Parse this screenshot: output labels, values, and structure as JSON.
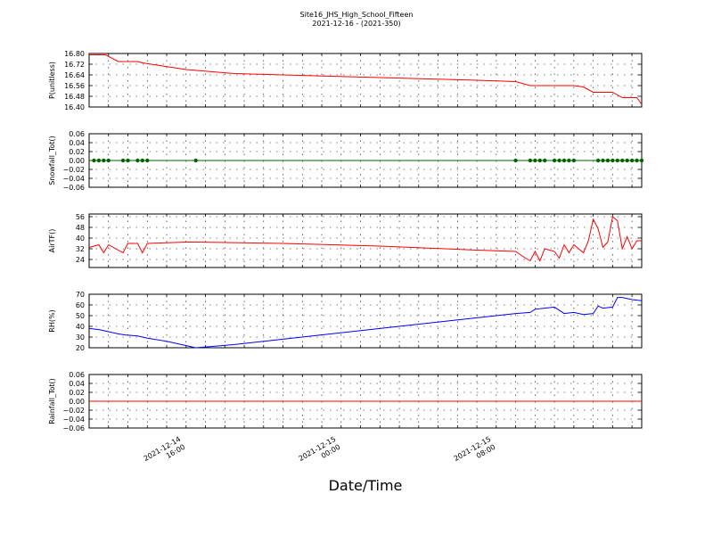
{
  "figure": {
    "title_line1": "Site16_JHS_High_School_Fifteen",
    "title_line2": "2021-12-16 - (2021-350)",
    "xlabel": "Date/Time",
    "x_tick_labels": [
      {
        "line1": "2021-12-14",
        "line2": "16:00"
      },
      {
        "line1": "2021-12-15",
        "line2": "00:00"
      },
      {
        "line1": "2021-12-15",
        "line2": "08:00"
      }
    ]
  },
  "chart_data": [
    {
      "type": "line",
      "ylabel": "P(unitless)",
      "ylim": [
        16.4,
        16.8
      ],
      "yticks": [
        "16.40",
        "16.48",
        "16.56",
        "16.64",
        "16.72",
        "16.80"
      ],
      "color": "#ff0000",
      "grid": true,
      "series": [
        {
          "x": [
            0,
            1,
            1.7,
            3,
            3.7,
            5,
            5.5,
            10,
            15,
            20,
            25,
            30,
            35,
            40,
            44,
            45.5,
            48,
            50,
            51,
            52,
            53,
            54,
            55,
            56,
            56.5,
            57
          ],
          "y": [
            16.79,
            16.79,
            16.79,
            16.74,
            16.74,
            16.74,
            16.73,
            16.68,
            16.65,
            16.64,
            16.63,
            16.62,
            16.61,
            16.6,
            16.59,
            16.56,
            16.56,
            16.56,
            16.55,
            16.51,
            16.51,
            16.51,
            16.47,
            16.47,
            16.47,
            16.42
          ]
        }
      ],
      "markers": false
    },
    {
      "type": "scatter",
      "ylabel": "Snowfall_Tot()",
      "ylim": [
        -0.06,
        0.06
      ],
      "yticks": [
        "−0.06",
        "−0.04",
        "−0.02",
        "0.00",
        "0.02",
        "0.04",
        "0.06"
      ],
      "color": "#006400",
      "grid": true,
      "series": [
        {
          "x": [
            0.5,
            1.0,
            1.5,
            2.0,
            3.5,
            4.0,
            5.0,
            5.5,
            6.0,
            11.0,
            44.0,
            45.5,
            46.0,
            46.5,
            47.0,
            48.0,
            48.5,
            49.0,
            49.5,
            50.0,
            52.5,
            53.0,
            53.5,
            54.0,
            54.5,
            55.0,
            55.5,
            56.0,
            56.5,
            57.0
          ],
          "y": [
            0,
            0,
            0,
            0,
            0,
            0,
            0,
            0,
            0,
            0,
            0,
            0,
            0,
            0,
            0,
            0,
            0,
            0,
            0,
            0,
            0,
            0,
            0,
            0,
            0,
            0,
            0,
            0,
            0,
            0
          ]
        }
      ],
      "markers": true
    },
    {
      "type": "line",
      "ylabel": "AirTF()",
      "ylim": [
        18,
        58
      ],
      "yticks": [
        "24",
        "32",
        "40",
        "48",
        "56"
      ],
      "color": "#ff0000",
      "grid": true,
      "series": [
        {
          "x": [
            0,
            1,
            1.5,
            2,
            3,
            3.5,
            4,
            5,
            5.5,
            6,
            10,
            11,
            20,
            30,
            40,
            44,
            45,
            45.5,
            46,
            46.5,
            47,
            48,
            48.5,
            49,
            49.5,
            50,
            51,
            51.5,
            52,
            52.5,
            53,
            53.5,
            54,
            54.5,
            55,
            55.5,
            56,
            56.5,
            57
          ],
          "y": [
            33,
            35,
            29,
            35,
            31,
            29,
            36,
            36,
            29,
            36,
            37,
            37,
            36,
            34,
            31,
            30,
            25,
            23,
            30,
            23,
            32,
            30,
            25,
            35,
            29,
            35,
            29,
            38,
            54,
            47,
            33,
            37,
            56,
            53,
            32,
            41,
            32,
            38,
            38
          ]
        }
      ],
      "markers": false
    },
    {
      "type": "line",
      "ylabel": "RH(%)",
      "ylim": [
        20,
        70
      ],
      "yticks": [
        "20",
        "30",
        "40",
        "50",
        "60",
        "70"
      ],
      "color": "#0000ff",
      "grid": true,
      "series": [
        {
          "x": [
            0,
            1,
            2,
            3,
            3.7,
            5,
            6,
            8,
            11,
            15,
            20,
            25,
            30,
            35,
            40,
            44,
            45.5,
            46,
            47,
            48,
            49,
            50,
            51,
            52,
            52.5,
            53,
            54,
            54.5,
            55,
            56,
            57
          ],
          "y": [
            38,
            37,
            35,
            33,
            32,
            31,
            29,
            26,
            20,
            23,
            28,
            33,
            38,
            43,
            48,
            52,
            53,
            56,
            57,
            58,
            52,
            53,
            51,
            52,
            59,
            57,
            58,
            67,
            67,
            65,
            64
          ]
        }
      ],
      "markers": false
    },
    {
      "type": "line",
      "ylabel": "Rainfall_Tot()",
      "ylim": [
        -0.06,
        0.06
      ],
      "yticks": [
        "−0.06",
        "−0.04",
        "−0.02",
        "0.00",
        "0.02",
        "0.04",
        "0.06"
      ],
      "color": "#ff0000",
      "grid": true,
      "series": [
        {
          "x": [
            0,
            57
          ],
          "y": [
            0,
            0
          ]
        }
      ],
      "markers": false
    }
  ]
}
